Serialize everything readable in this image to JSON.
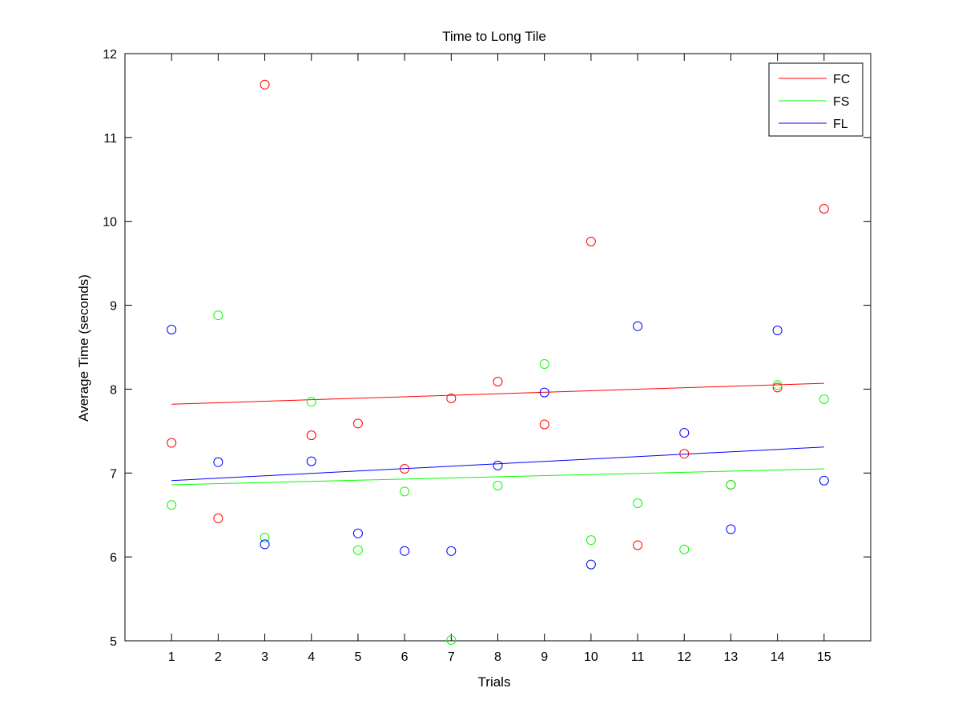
{
  "chart_data": {
    "type": "scatter",
    "title": "Time to Long Tile",
    "xlabel": "Trials",
    "ylabel": "Average Time (seconds)",
    "xlim": [
      0,
      16
    ],
    "ylim": [
      5,
      12
    ],
    "xticks": [
      1,
      2,
      3,
      4,
      5,
      6,
      7,
      8,
      9,
      10,
      11,
      12,
      13,
      14,
      15
    ],
    "yticks": [
      5,
      6,
      7,
      8,
      9,
      10,
      11,
      12
    ],
    "grid": false,
    "legend_position": "top-right",
    "x": [
      1,
      2,
      3,
      4,
      5,
      6,
      7,
      8,
      9,
      10,
      11,
      12,
      13,
      14,
      15
    ],
    "series": [
      {
        "name": "FC",
        "color": "#ff0000",
        "values": [
          7.36,
          6.46,
          11.63,
          7.45,
          7.59,
          7.05,
          7.89,
          8.09,
          7.58,
          9.76,
          6.14,
          7.23,
          6.86,
          8.02,
          10.15
        ],
        "fit": [
          7.82,
          8.07
        ]
      },
      {
        "name": "FS",
        "color": "#00ff00",
        "values": [
          6.62,
          8.88,
          6.23,
          7.85,
          6.08,
          6.78,
          5.01,
          6.85,
          8.3,
          6.2,
          6.64,
          6.09,
          6.86,
          8.05,
          7.88
        ],
        "fit": [
          6.86,
          7.05
        ]
      },
      {
        "name": "FL",
        "color": "#0000ff",
        "values": [
          8.71,
          7.13,
          6.15,
          7.14,
          6.28,
          6.07,
          6.07,
          7.09,
          7.96,
          5.91,
          8.75,
          7.48,
          6.33,
          8.7,
          6.91
        ],
        "fit": [
          6.91,
          7.31
        ]
      }
    ]
  }
}
